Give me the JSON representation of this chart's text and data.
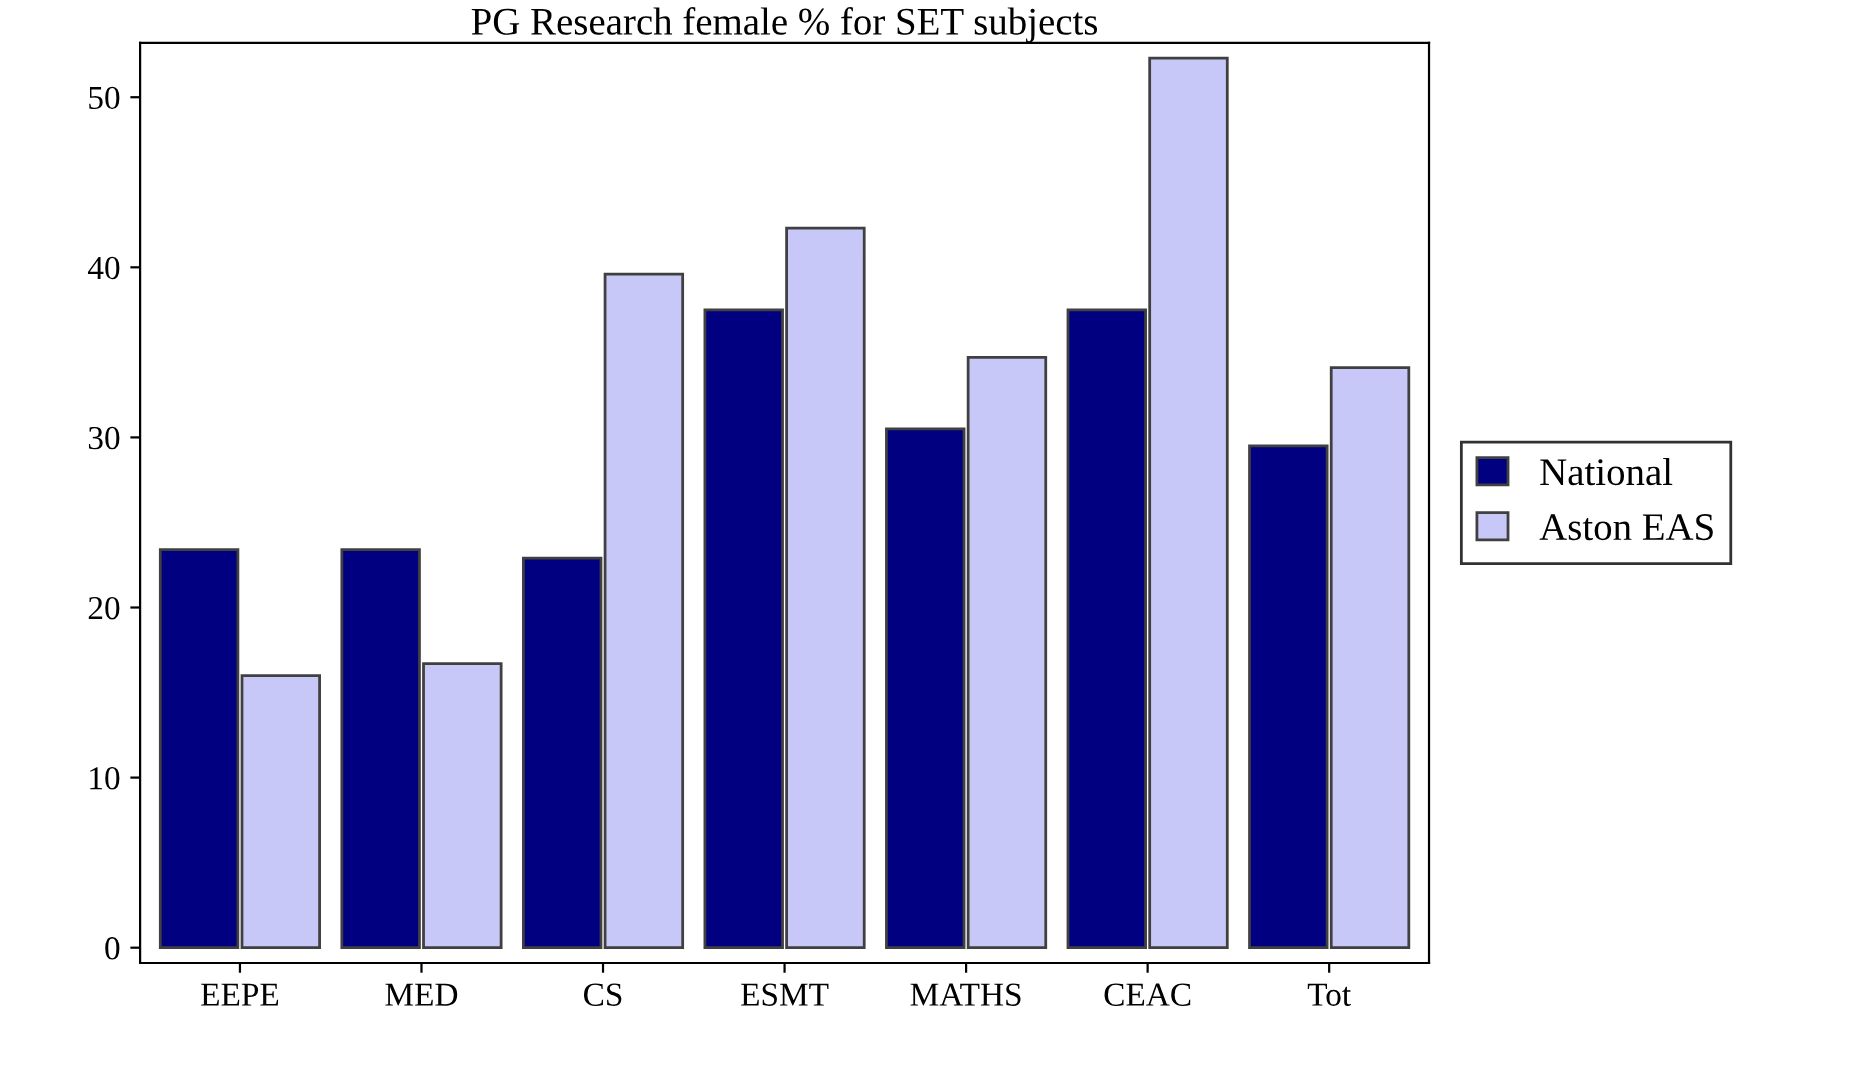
{
  "chart_data": {
    "type": "bar",
    "title": "PG Research female % for SET subjects",
    "categories": [
      "EEPE",
      "MED",
      "CS",
      "ESMT",
      "MATHS",
      "CEAC",
      "Tot"
    ],
    "series": [
      {
        "name": "National",
        "color": "#000080",
        "values": [
          23.4,
          23.4,
          22.9,
          37.5,
          30.5,
          37.5,
          29.5
        ]
      },
      {
        "name": "Aston EAS",
        "color": "#c8c8f8",
        "values": [
          16.0,
          16.7,
          39.6,
          42.3,
          34.7,
          52.3,
          34.1
        ]
      }
    ],
    "ylim": [
      -0.9,
      53.2
    ],
    "yticks": [
      0,
      10,
      20,
      30,
      40,
      50
    ],
    "grid": false,
    "legend": "right"
  }
}
